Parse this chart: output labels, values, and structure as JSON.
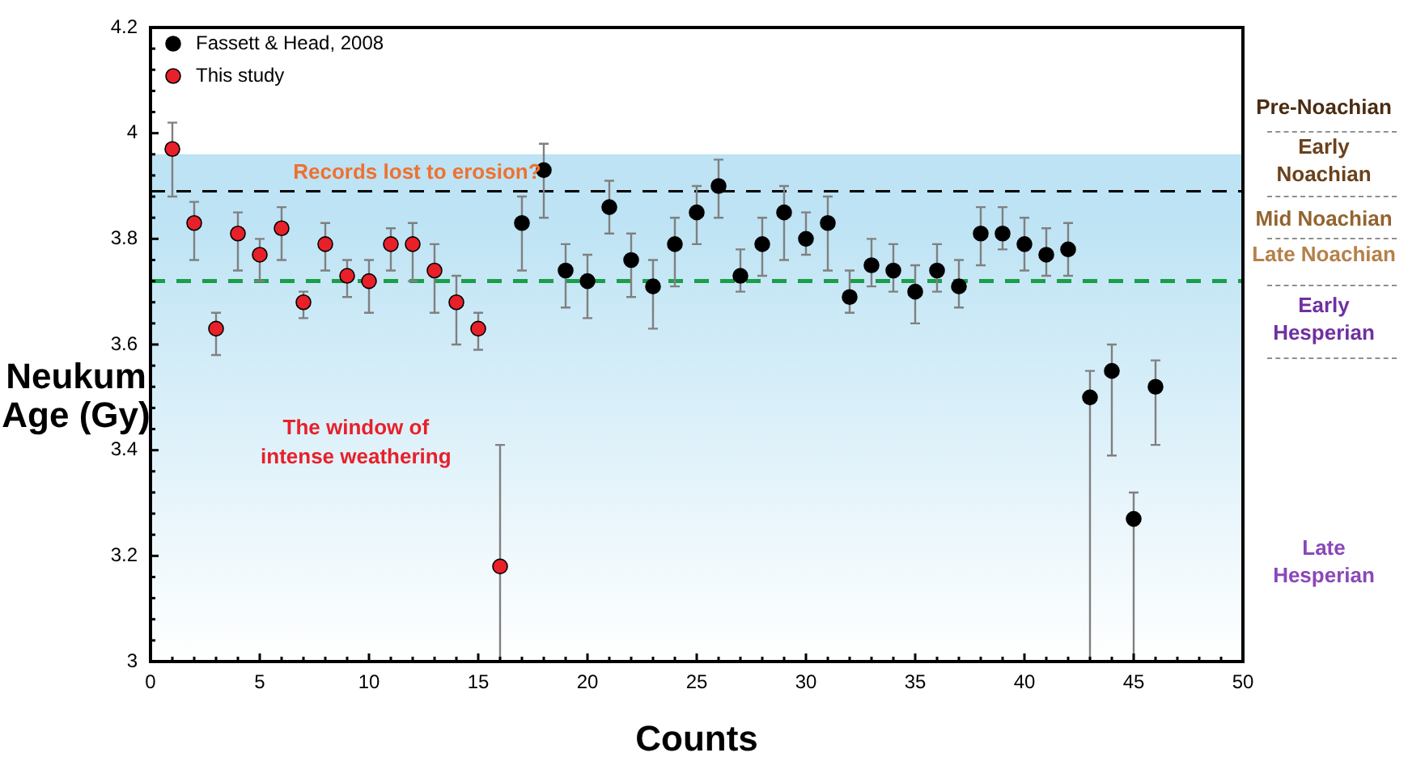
{
  "chart_data": {
    "type": "scatter",
    "xlabel": "Counts",
    "ylabel": "Neukum Age (Gy)",
    "xlim": [
      0,
      50
    ],
    "ylim": [
      3,
      4.2
    ],
    "xticks": [
      0,
      {
        "value": 1,
        "label": null
      },
      {
        "value": 2,
        "label": null
      },
      {
        "value": 3,
        "label": null
      },
      {
        "value": 4,
        "label": null
      },
      5,
      {
        "value": 6,
        "label": null
      },
      {
        "value": 7,
        "label": null
      },
      {
        "value": 8,
        "label": null
      },
      {
        "value": 9,
        "label": null
      },
      10,
      {
        "value": 11,
        "label": null
      },
      {
        "value": 12,
        "label": null
      },
      {
        "value": 13,
        "label": null
      },
      {
        "value": 14,
        "label": null
      },
      15,
      {
        "value": 16,
        "label": null
      },
      {
        "value": 17,
        "label": null
      },
      {
        "value": 18,
        "label": null
      },
      {
        "value": 19,
        "label": null
      },
      20,
      {
        "value": 21,
        "label": null
      },
      {
        "value": 22,
        "label": null
      },
      {
        "value": 23,
        "label": null
      },
      {
        "value": 24,
        "label": null
      },
      25,
      {
        "value": 26,
        "label": null
      },
      {
        "value": 27,
        "label": null
      },
      {
        "value": 28,
        "label": null
      },
      {
        "value": 29,
        "label": null
      },
      30,
      {
        "value": 31,
        "label": null
      },
      {
        "value": 32,
        "label": null
      },
      {
        "value": 33,
        "label": null
      },
      {
        "value": 34,
        "label": null
      },
      35,
      {
        "value": 36,
        "label": null
      },
      {
        "value": 37,
        "label": null
      },
      {
        "value": 38,
        "label": null
      },
      {
        "value": 39,
        "label": null
      },
      40,
      {
        "value": 41,
        "label": null
      },
      {
        "value": 42,
        "label": null
      },
      {
        "value": 43,
        "label": null
      },
      {
        "value": 44,
        "label": null
      },
      45,
      {
        "value": 46,
        "label": null
      },
      {
        "value": 47,
        "label": null
      },
      {
        "value": 48,
        "label": null
      },
      {
        "value": 49,
        "label": null
      },
      50
    ],
    "yticks": [
      3,
      {
        "value": 3.04,
        "label": null
      },
      {
        "value": 3.08,
        "label": null
      },
      {
        "value": 3.12,
        "label": null
      },
      {
        "value": 3.16,
        "label": null
      },
      3.2,
      {
        "value": 3.24,
        "label": null
      },
      {
        "value": 3.28,
        "label": null
      },
      {
        "value": 3.32,
        "label": null
      },
      {
        "value": 3.36,
        "label": null
      },
      3.4,
      {
        "value": 3.44,
        "label": null
      },
      {
        "value": 3.48,
        "label": null
      },
      {
        "value": 3.52,
        "label": null
      },
      {
        "value": 3.56,
        "label": null
      },
      3.6,
      {
        "value": 3.64,
        "label": null
      },
      {
        "value": 3.68,
        "label": null
      },
      {
        "value": 3.72,
        "label": null
      },
      {
        "value": 3.76,
        "label": null
      },
      3.8,
      {
        "value": 3.84,
        "label": null
      },
      {
        "value": 3.88,
        "label": null
      },
      {
        "value": 3.92,
        "label": null
      },
      {
        "value": 3.96,
        "label": null
      },
      4,
      {
        "value": 4.04,
        "label": null
      },
      {
        "value": 4.08,
        "label": null
      },
      {
        "value": 4.12,
        "label": null
      },
      {
        "value": 4.16,
        "label": null
      },
      4.2
    ],
    "grid": false,
    "legend": "top left",
    "marker": "circle",
    "series": [
      {
        "name": "Fassett & Head, 2008",
        "color": "#000000",
        "x": [
          17,
          18,
          19,
          20,
          21,
          22,
          23,
          24,
          25,
          26,
          27,
          28,
          29,
          30,
          31,
          32,
          33,
          34,
          35,
          36,
          37,
          38,
          39,
          40,
          41,
          42,
          43,
          44,
          45,
          46
        ],
        "values": [
          3.83,
          3.93,
          3.74,
          3.72,
          3.86,
          3.76,
          3.71,
          3.79,
          3.85,
          3.9,
          3.73,
          3.79,
          3.85,
          3.8,
          3.83,
          3.69,
          3.75,
          3.74,
          3.7,
          3.74,
          3.71,
          3.81,
          3.81,
          3.79,
          3.77,
          3.78,
          3.5,
          3.55,
          3.27,
          3.52
        ],
        "errors": [
          [
            3.74,
            3.88
          ],
          [
            3.84,
            3.98
          ],
          [
            3.67,
            3.79
          ],
          [
            3.65,
            3.77
          ],
          [
            3.81,
            3.91
          ],
          [
            3.69,
            3.81
          ],
          [
            3.63,
            3.76
          ],
          [
            3.71,
            3.84
          ],
          [
            3.79,
            3.9
          ],
          [
            3.84,
            3.95
          ],
          [
            3.7,
            3.78
          ],
          [
            3.73,
            3.84
          ],
          [
            3.76,
            3.9
          ],
          [
            3.77,
            3.85
          ],
          [
            3.74,
            3.88
          ],
          [
            3.66,
            3.74
          ],
          [
            3.71,
            3.8
          ],
          [
            3.7,
            3.79
          ],
          [
            3.64,
            3.75
          ],
          [
            3.7,
            3.79
          ],
          [
            3.67,
            3.76
          ],
          [
            3.75,
            3.86
          ],
          [
            3.78,
            3.86
          ],
          [
            3.74,
            3.84
          ],
          [
            3.73,
            3.82
          ],
          [
            3.73,
            3.83
          ],
          [
            3.0,
            3.55
          ],
          [
            3.39,
            3.6
          ],
          [
            3.0,
            3.32
          ],
          [
            3.41,
            3.57
          ]
        ]
      },
      {
        "name": "This study",
        "color": "#e8202a",
        "x": [
          1,
          2,
          3,
          4,
          5,
          6,
          7,
          8,
          9,
          10,
          11,
          12,
          13,
          14,
          15,
          16
        ],
        "values": [
          3.97,
          3.83,
          3.63,
          3.81,
          3.77,
          3.82,
          3.68,
          3.79,
          3.73,
          3.72,
          3.79,
          3.79,
          3.74,
          3.68,
          3.63,
          3.18
        ],
        "errors": [
          [
            3.88,
            4.02
          ],
          [
            3.76,
            3.87
          ],
          [
            3.58,
            3.66
          ],
          [
            3.74,
            3.85
          ],
          [
            3.72,
            3.8
          ],
          [
            3.76,
            3.86
          ],
          [
            3.65,
            3.7
          ],
          [
            3.74,
            3.83
          ],
          [
            3.69,
            3.76
          ],
          [
            3.66,
            3.76
          ],
          [
            3.74,
            3.82
          ],
          [
            3.72,
            3.83
          ],
          [
            3.66,
            3.79
          ],
          [
            3.6,
            3.73
          ],
          [
            3.59,
            3.66
          ],
          [
            3.0,
            3.41
          ]
        ]
      }
    ],
    "ref_lines": [
      {
        "axis": "y",
        "value": 3.89,
        "color": "#000000",
        "line_style": "dashed"
      },
      {
        "axis": "y",
        "value": 3.72,
        "color": "#1a9e4a",
        "line_style": "dashed"
      }
    ],
    "bands": [
      {
        "axis": "y",
        "from": 3.0,
        "to": 3.96,
        "color": "#bde3f4"
      }
    ],
    "annotations": [
      "Records lost to erosion?",
      "The window of intense weathering",
      "Pre-Noachian",
      "Early Noachian",
      "Mid Noachian",
      "Late Noachian",
      "Early Hesperian",
      "Late Hesperian"
    ]
  }
}
